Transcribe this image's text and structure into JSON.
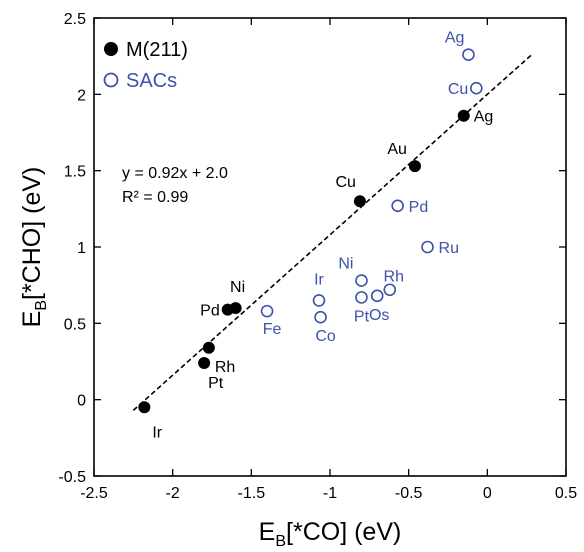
{
  "colors": {
    "metal": "#000000",
    "sac": "#3d52a8"
  },
  "chart_data": {
    "type": "scatter",
    "xlabel_main": "E",
    "xlabel_sub": "B",
    "xlabel_rest": "[*CO] (eV)",
    "ylabel_main": "E",
    "ylabel_sub": "B",
    "ylabel_rest": "[*CHO] (eV)",
    "xlim": [
      -2.5,
      0.5
    ],
    "ylim": [
      -0.5,
      2.5
    ],
    "xticks": [
      -2.5,
      -2,
      -1.5,
      -1,
      -0.5,
      0,
      0.5
    ],
    "xtick_labels": [
      "-2.5",
      "-2",
      "-1.5",
      "-1",
      "-0.5",
      "0",
      "0.5"
    ],
    "yticks": [
      -0.5,
      0,
      0.5,
      1,
      1.5,
      2,
      2.5
    ],
    "ytick_labels": [
      "-0.5",
      "0",
      "0.5",
      "1",
      "1.5",
      "2",
      "2.5"
    ],
    "legend": [
      {
        "name": "M(211)",
        "marker": "filled"
      },
      {
        "name": "SACs",
        "marker": "open"
      }
    ],
    "fit": {
      "equation": "y = 0.92x + 2.0",
      "r2": "R² = 0.99",
      "slope": 0.92,
      "intercept": 2.0,
      "x_range": [
        -2.25,
        0.28
      ]
    },
    "series": [
      {
        "name": "M(211)",
        "marker": "filled",
        "points": [
          {
            "label": "Ag",
            "x": -0.15,
            "y": 1.86
          },
          {
            "label": "Au",
            "x": -0.46,
            "y": 1.53
          },
          {
            "label": "Cu",
            "x": -0.81,
            "y": 1.3
          },
          {
            "label": "Ni",
            "x": -1.6,
            "y": 0.6
          },
          {
            "label": "Pd",
            "x": -1.65,
            "y": 0.59
          },
          {
            "label": "Rh",
            "x": -1.77,
            "y": 0.34
          },
          {
            "label": "Pt",
            "x": -1.8,
            "y": 0.24
          },
          {
            "label": "Ir",
            "x": -2.18,
            "y": -0.05
          }
        ]
      },
      {
        "name": "SACs",
        "marker": "open",
        "points": [
          {
            "label": "Ag",
            "x": -0.12,
            "y": 2.26
          },
          {
            "label": "Cu",
            "x": -0.07,
            "y": 2.04
          },
          {
            "label": "Pd",
            "x": -0.57,
            "y": 1.27
          },
          {
            "label": "Ru",
            "x": -0.38,
            "y": 1.0
          },
          {
            "label": "Ni",
            "x": -0.8,
            "y": 0.78
          },
          {
            "label": "Rh",
            "x": -0.62,
            "y": 0.72
          },
          {
            "label": "Os",
            "x": -0.7,
            "y": 0.68
          },
          {
            "label": "Pt",
            "x": -0.8,
            "y": 0.67
          },
          {
            "label": "Ir",
            "x": -1.07,
            "y": 0.65
          },
          {
            "label": "Co",
            "x": -1.06,
            "y": 0.54
          },
          {
            "label": "Fe",
            "x": -1.4,
            "y": 0.58
          }
        ]
      }
    ]
  }
}
